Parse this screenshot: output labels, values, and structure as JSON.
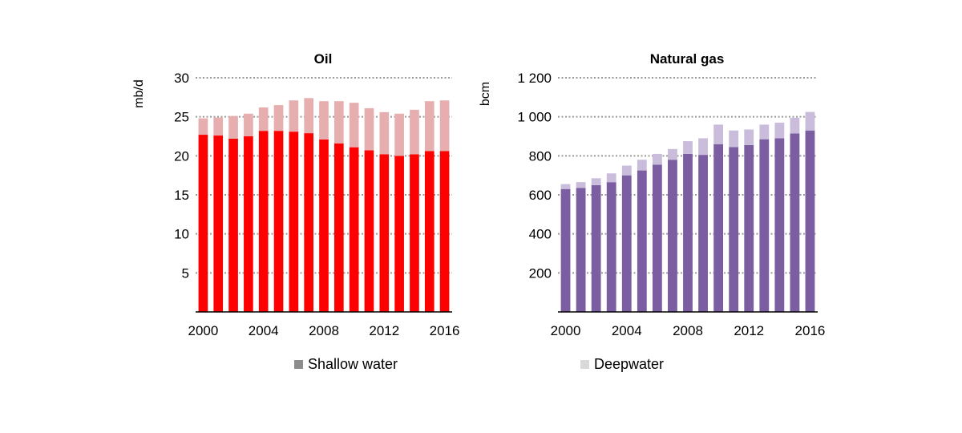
{
  "legend": [
    {
      "label": "Shallow water",
      "color": "#8c8c8c"
    },
    {
      "label": "Deepwater",
      "color": "#d9d9d9"
    }
  ],
  "chart_data": [
    {
      "type": "bar",
      "stacked": true,
      "title": "Oil",
      "ylabel": "mb/d",
      "ylim": [
        0,
        30
      ],
      "y_ticks": [
        5,
        10,
        15,
        20,
        25,
        30
      ],
      "y_tick_labels": [
        "5",
        "10",
        "15",
        "20",
        "25",
        "30"
      ],
      "grid": true,
      "categories": [
        2000,
        2001,
        2002,
        2003,
        2004,
        2005,
        2006,
        2007,
        2008,
        2009,
        2010,
        2011,
        2012,
        2013,
        2014,
        2015,
        2016
      ],
      "x_tick_labels": [
        "2000",
        "2004",
        "2008",
        "2012",
        "2016"
      ],
      "series": [
        {
          "name": "Shallow water",
          "color": "#ff0000",
          "values": [
            22.7,
            22.6,
            22.2,
            22.5,
            23.2,
            23.2,
            23.1,
            22.9,
            22.1,
            21.6,
            21.1,
            20.7,
            20.2,
            20.0,
            20.2,
            20.6,
            20.6
          ]
        },
        {
          "name": "Deepwater",
          "color": "#e6aeae",
          "values": [
            2.1,
            2.3,
            2.9,
            2.9,
            3.0,
            3.3,
            4.0,
            4.5,
            4.9,
            5.4,
            5.7,
            5.4,
            5.4,
            5.4,
            5.7,
            6.4,
            6.5
          ]
        }
      ]
    },
    {
      "type": "bar",
      "stacked": true,
      "title": "Natural gas",
      "ylabel": "bcm",
      "ylim": [
        0,
        1200
      ],
      "y_ticks": [
        200,
        400,
        600,
        800,
        1000,
        1200
      ],
      "y_tick_labels": [
        "200",
        "400",
        "600",
        "800",
        "1 000",
        "1 200"
      ],
      "grid": true,
      "categories": [
        2000,
        2001,
        2002,
        2003,
        2004,
        2005,
        2006,
        2007,
        2008,
        2009,
        2010,
        2011,
        2012,
        2013,
        2014,
        2015,
        2016
      ],
      "x_tick_labels": [
        "2000",
        "2004",
        "2008",
        "2012",
        "2016"
      ],
      "series": [
        {
          "name": "Shallow water",
          "color": "#7b5ea1",
          "values": [
            630,
            635,
            650,
            665,
            700,
            725,
            755,
            780,
            810,
            805,
            860,
            845,
            855,
            885,
            890,
            915,
            930
          ]
        },
        {
          "name": "Deepwater",
          "color": "#c9bddb",
          "values": [
            25,
            30,
            35,
            45,
            50,
            55,
            55,
            55,
            65,
            85,
            100,
            85,
            80,
            75,
            80,
            80,
            95
          ]
        }
      ]
    }
  ]
}
